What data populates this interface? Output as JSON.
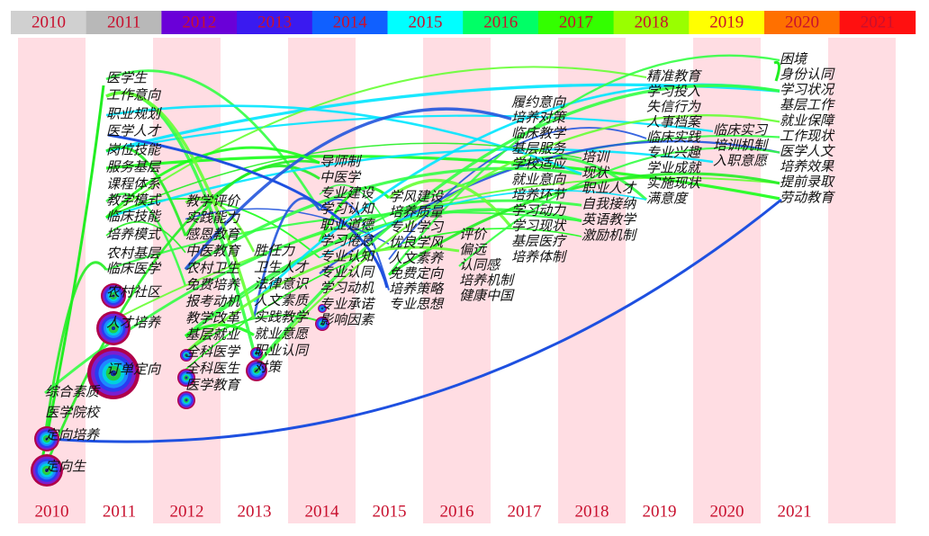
{
  "legend_years": [
    "2010",
    "2011",
    "2012",
    "2013",
    "2014",
    "2015",
    "2016",
    "2017",
    "2018",
    "2019",
    "2020",
    "2021"
  ],
  "axis_years": [
    "2010",
    "2011",
    "2012",
    "2013",
    "2014",
    "2015",
    "2016",
    "2017",
    "2018",
    "2019",
    "2020",
    "2021"
  ],
  "columns": [
    {
      "keywords": [
        "综合素质",
        "医学院校",
        "定向培养",
        "定向生"
      ]
    },
    {
      "keywords": [
        "医学生",
        "工作意向",
        "职业规划",
        "医学人才",
        "岗位技能",
        "服务基层",
        "课程体系",
        "教学模式",
        "临床技能",
        "培养模式",
        "农村基层",
        "临床医学",
        "农村社区",
        "人才培养",
        "订单定向"
      ]
    },
    {
      "keywords": [
        "教学评价",
        "实践能力",
        "感恩教育",
        "中医教育",
        "农村卫生",
        "免费培养",
        "报考动机",
        "教学改革",
        "基层就业",
        "全科医学",
        "全科医生",
        "医学教育"
      ]
    },
    {
      "keywords": [
        "胜任力",
        "卫生人才",
        "法律意识",
        "人文素质",
        "实践教学",
        "就业意愿",
        "职业认同",
        "对策"
      ]
    },
    {
      "keywords": [
        "导师制",
        "中医学",
        "专业建设",
        "学习认知",
        "职业道德",
        "学习倦怠",
        "专业认知",
        "专业认同",
        "学习动机",
        "专业承诺",
        "影响因素"
      ]
    },
    {
      "keywords": [
        "学风建设",
        "培养质量",
        "专业学习",
        "优良学风",
        "人文素养",
        "免费定向",
        "培养策略",
        "专业思想"
      ]
    },
    {
      "keywords": [
        "评价",
        "偏远",
        "认同感",
        "培养机制",
        "健康中国"
      ]
    },
    {
      "keywords": [
        "履约意向",
        "培养对策",
        "临床教学",
        "基层服务",
        "学校适应",
        "就业意向",
        "培养环节",
        "学习动力",
        "学习现状",
        "基层医疗",
        "培养体制"
      ]
    },
    {
      "keywords": [
        "培训",
        "现状",
        "职业人才",
        "自我接纳",
        "英语教学",
        "激励机制"
      ]
    },
    {
      "keywords": [
        "精准教育",
        "学习投入",
        "失信行为",
        "人事档案",
        "临床实践",
        "专业兴趣",
        "学业成就",
        "实施现状",
        "满意度"
      ]
    },
    {
      "keywords": [
        "临床实习",
        "培训机制",
        "入职意愿"
      ]
    },
    {
      "keywords": [
        "困境",
        "身份认同",
        "学习状况",
        "基层工作",
        "就业保障",
        "工作现状",
        "医学人文",
        "培养效果",
        "提前录取",
        "劳动教育"
      ]
    }
  ]
}
